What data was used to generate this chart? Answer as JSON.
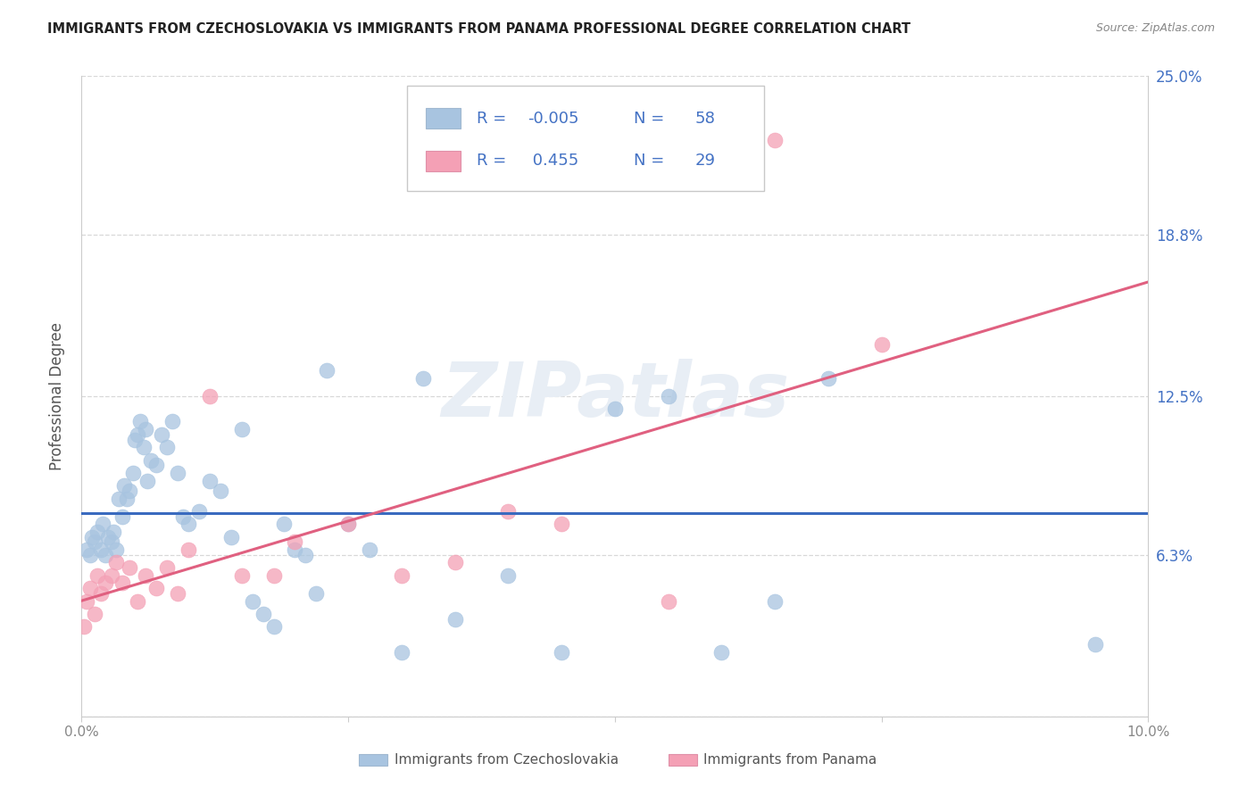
{
  "title": "IMMIGRANTS FROM CZECHOSLOVAKIA VS IMMIGRANTS FROM PANAMA PROFESSIONAL DEGREE CORRELATION CHART",
  "source": "Source: ZipAtlas.com",
  "ylabel": "Professional Degree",
  "xlim": [
    0.0,
    10.0
  ],
  "ylim": [
    0.0,
    25.0
  ],
  "ytick_vals": [
    0.0,
    6.3,
    12.5,
    18.8,
    25.0
  ],
  "ytick_labels": [
    "",
    "6.3%",
    "12.5%",
    "18.8%",
    "25.0%"
  ],
  "xtick_vals": [
    0.0,
    2.5,
    5.0,
    7.5,
    10.0
  ],
  "xtick_labels": [
    "0.0%",
    "",
    "",
    "",
    "10.0%"
  ],
  "blue_scatter_color": "#a8c4e0",
  "pink_scatter_color": "#f4a0b5",
  "trend_blue_color": "#3a6bbf",
  "trend_pink_color": "#e06080",
  "accent_color": "#4472c4",
  "grid_color": "#d8d8d8",
  "watermark_color": "#e8eef5",
  "legend_label1": "Immigrants from Czechoslovakia",
  "legend_label2": "Immigrants from Panama",
  "blue_x": [
    0.05,
    0.08,
    0.1,
    0.12,
    0.15,
    0.18,
    0.2,
    0.22,
    0.25,
    0.28,
    0.3,
    0.32,
    0.35,
    0.38,
    0.4,
    0.42,
    0.45,
    0.48,
    0.5,
    0.52,
    0.55,
    0.58,
    0.6,
    0.62,
    0.65,
    0.7,
    0.75,
    0.8,
    0.85,
    0.9,
    0.95,
    1.0,
    1.1,
    1.2,
    1.3,
    1.4,
    1.5,
    1.6,
    1.7,
    1.8,
    1.9,
    2.0,
    2.1,
    2.2,
    2.3,
    2.5,
    2.7,
    3.0,
    3.2,
    3.5,
    4.0,
    4.5,
    5.0,
    5.5,
    6.0,
    6.5,
    7.0,
    9.5
  ],
  "blue_y": [
    6.5,
    6.3,
    7.0,
    6.8,
    7.2,
    6.5,
    7.5,
    6.3,
    7.0,
    6.8,
    7.2,
    6.5,
    8.5,
    7.8,
    9.0,
    8.5,
    8.8,
    9.5,
    10.8,
    11.0,
    11.5,
    10.5,
    11.2,
    9.2,
    10.0,
    9.8,
    11.0,
    10.5,
    11.5,
    9.5,
    7.8,
    7.5,
    8.0,
    9.2,
    8.8,
    7.0,
    11.2,
    4.5,
    4.0,
    3.5,
    7.5,
    6.5,
    6.3,
    4.8,
    13.5,
    7.5,
    6.5,
    2.5,
    13.2,
    3.8,
    5.5,
    2.5,
    12.0,
    12.5,
    2.5,
    4.5,
    13.2,
    2.8
  ],
  "pink_x": [
    0.02,
    0.05,
    0.08,
    0.12,
    0.15,
    0.18,
    0.22,
    0.28,
    0.32,
    0.38,
    0.45,
    0.52,
    0.6,
    0.7,
    0.8,
    0.9,
    1.0,
    1.2,
    1.5,
    1.8,
    2.0,
    2.5,
    3.0,
    3.5,
    4.0,
    4.5,
    5.5,
    6.5,
    7.5
  ],
  "pink_y": [
    3.5,
    4.5,
    5.0,
    4.0,
    5.5,
    4.8,
    5.2,
    5.5,
    6.0,
    5.2,
    5.8,
    4.5,
    5.5,
    5.0,
    5.8,
    4.8,
    6.5,
    12.5,
    5.5,
    5.5,
    6.8,
    7.5,
    5.5,
    6.0,
    8.0,
    7.5,
    4.5,
    22.5,
    14.5
  ]
}
